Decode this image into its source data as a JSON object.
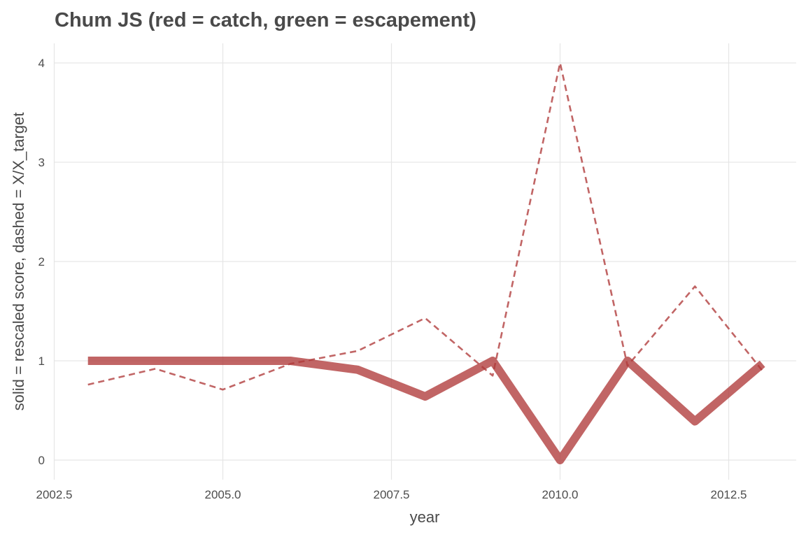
{
  "chart_data": {
    "type": "line",
    "title": "Chum JS (red = catch, green = escapement)",
    "xlabel": "year",
    "ylabel": "solid = rescaled score, dashed = X/X_target",
    "xlim": [
      2002.5,
      2013.5
    ],
    "ylim": [
      0,
      4
    ],
    "x_ticks": [
      2002.5,
      2005.0,
      2007.5,
      2010.0,
      2012.5
    ],
    "x_tick_labels": [
      "2002.5",
      "2005.0",
      "2007.5",
      "2010.0",
      "2012.5"
    ],
    "y_ticks": [
      0,
      1,
      2,
      3,
      4
    ],
    "y_tick_labels": [
      "0",
      "1",
      "2",
      "3",
      "4"
    ],
    "grid": true,
    "legend": "none",
    "series": [
      {
        "style": "solid",
        "color": "#b03a3a",
        "x": [
          2003,
          2004,
          2005,
          2006,
          2007,
          2008,
          2009,
          2010,
          2011,
          2012,
          2013
        ],
        "y": [
          1.0,
          1.0,
          1.0,
          1.0,
          0.91,
          0.64,
          1.0,
          0.0,
          1.0,
          0.39,
          0.97
        ]
      },
      {
        "style": "dashed",
        "color": "#b03a3a",
        "x": [
          2003,
          2004,
          2005,
          2006,
          2007,
          2008,
          2009,
          2010,
          2011,
          2012,
          2013
        ],
        "y": [
          0.76,
          0.92,
          0.71,
          0.97,
          1.1,
          1.43,
          0.85,
          4.0,
          0.95,
          1.75,
          0.9
        ]
      }
    ]
  }
}
